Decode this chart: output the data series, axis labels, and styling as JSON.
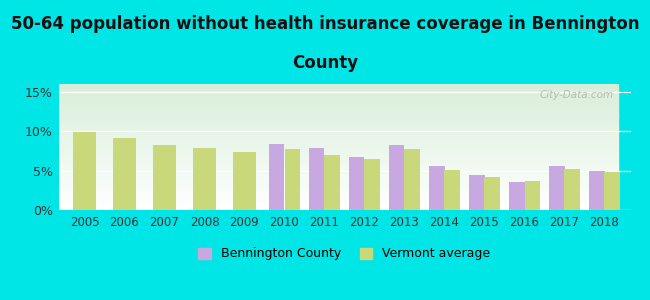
{
  "years": [
    2005,
    2006,
    2007,
    2008,
    2009,
    2010,
    2011,
    2012,
    2013,
    2014,
    2015,
    2016,
    2017,
    2018
  ],
  "bennington": [
    null,
    null,
    null,
    null,
    null,
    8.4,
    7.9,
    6.7,
    8.2,
    5.6,
    4.5,
    3.6,
    5.6,
    4.9
  ],
  "vermont": [
    9.9,
    9.2,
    8.2,
    7.9,
    7.4,
    7.7,
    7.0,
    6.5,
    7.8,
    5.1,
    4.2,
    3.7,
    5.2,
    4.8
  ],
  "bennington_color": "#c8a8e0",
  "vermont_color": "#c8d87a",
  "background_outer": "#00e5e5",
  "background_inner_top": "#ffffff",
  "background_inner_bottom": "#d8eed8",
  "title_line1": "50-64 population without health insurance coverage in Bennington",
  "title_line2": "County",
  "title_fontsize": 12,
  "ylim_max": 16,
  "yticks": [
    0,
    5,
    10,
    15
  ],
  "ytick_labels": [
    "0%",
    "5%",
    "10%",
    "15%"
  ],
  "bar_width": 0.38,
  "watermark": "City-Data.com",
  "legend_labels": [
    "Bennington County",
    "Vermont average"
  ]
}
